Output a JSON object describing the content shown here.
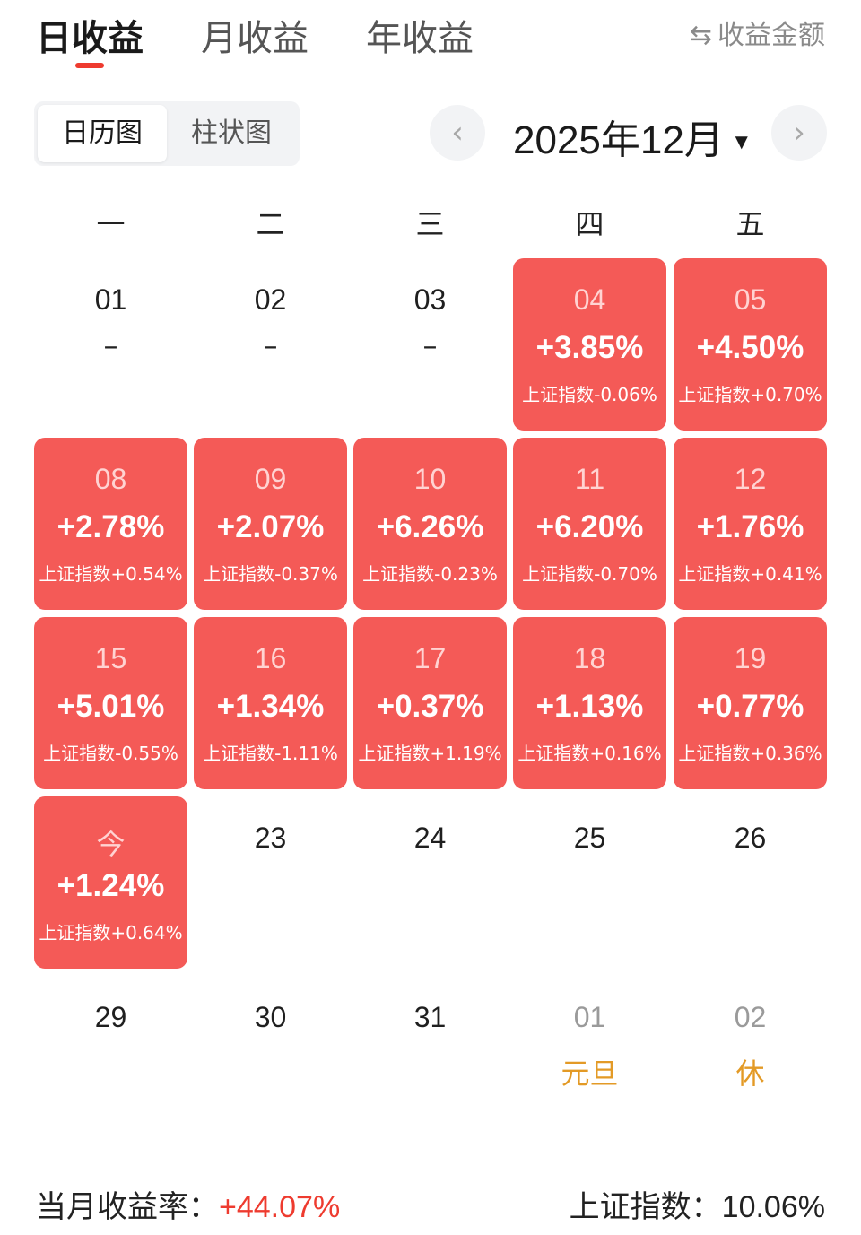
{
  "tabs": [
    {
      "label": "日收益",
      "active": true
    },
    {
      "label": "月收益",
      "active": false
    },
    {
      "label": "年收益",
      "active": false
    }
  ],
  "toggle": {
    "icon": "⇆",
    "label": "收益金额"
  },
  "view_switch": [
    {
      "label": "日历图",
      "active": true
    },
    {
      "label": "柱状图",
      "active": false
    }
  ],
  "month": {
    "label": "2025年12月",
    "caret": "▼"
  },
  "nav": {
    "prev": "‹",
    "next": "›"
  },
  "weekdays": [
    "一",
    "二",
    "三",
    "四",
    "五"
  ],
  "days": [
    {
      "day": "01",
      "dash": "–"
    },
    {
      "day": "02",
      "dash": "–"
    },
    {
      "day": "03",
      "dash": "–"
    },
    {
      "day": "04",
      "pct": "+3.85%",
      "index": "上证指数-0.06%"
    },
    {
      "day": "05",
      "pct": "+4.50%",
      "index": "上证指数+0.70%"
    },
    {
      "day": "08",
      "pct": "+2.78%",
      "index": "上证指数+0.54%"
    },
    {
      "day": "09",
      "pct": "+2.07%",
      "index": "上证指数-0.37%"
    },
    {
      "day": "10",
      "pct": "+6.26%",
      "index": "上证指数-0.23%"
    },
    {
      "day": "11",
      "pct": "+6.20%",
      "index": "上证指数-0.70%"
    },
    {
      "day": "12",
      "pct": "+1.76%",
      "index": "上证指数+0.41%"
    },
    {
      "day": "15",
      "pct": "+5.01%",
      "index": "上证指数-0.55%"
    },
    {
      "day": "16",
      "pct": "+1.34%",
      "index": "上证指数-1.11%"
    },
    {
      "day": "17",
      "pct": "+0.37%",
      "index": "上证指数+1.19%"
    },
    {
      "day": "18",
      "pct": "+1.13%",
      "index": "上证指数+0.16%"
    },
    {
      "day": "19",
      "pct": "+0.77%",
      "index": "上证指数+0.36%"
    },
    {
      "day": "今",
      "pct": "+1.24%",
      "index": "上证指数+0.64%"
    },
    {
      "day": "23"
    },
    {
      "day": "24"
    },
    {
      "day": "25"
    },
    {
      "day": "26"
    },
    {
      "day": "29"
    },
    {
      "day": "30"
    },
    {
      "day": "31"
    },
    {
      "day": "01",
      "holiday": "元旦",
      "next_month": true
    },
    {
      "day": "02",
      "holiday": "休",
      "next_month": true
    }
  ],
  "summary": {
    "label": "当月收益率：",
    "value": "+44.07%",
    "index_label": "上证指数：",
    "index_value": "10.06%"
  },
  "colors": {
    "accent": "#ee3b2f",
    "gain_cell": "#f45a57",
    "holiday": "#e39a26"
  }
}
